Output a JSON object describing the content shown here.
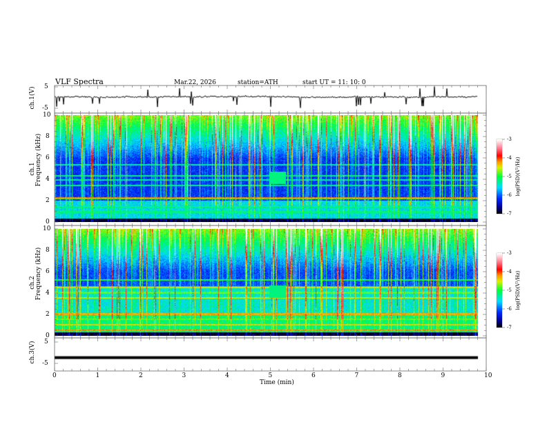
{
  "header": {
    "title": "VLF  Spectra",
    "date": "Mar.22, 2026",
    "station": "station=ATH",
    "start_ut": "start  UT  =    11: 10: 0"
  },
  "chart_data": [
    {
      "type": "line",
      "panel": "ch1-waveform",
      "ylabel": "ch.1(V)",
      "ylim": [
        -5,
        5
      ],
      "yticks": [
        "5",
        "-5"
      ],
      "xlim": [
        0,
        10
      ],
      "baseline_value": 0.3
    },
    {
      "type": "heatmap",
      "panel": "ch1-spectrogram",
      "ylabel_line1": "ch.1",
      "ylabel_line2": "Frequency  (kHz)",
      "ylim": [
        0,
        10
      ],
      "yticks": [
        "0",
        "2",
        "4",
        "6",
        "8",
        "10"
      ],
      "xlim": [
        0,
        10
      ],
      "colorbar": {
        "label": "log(PSD)(V²/Hz)",
        "range": [
          -7,
          -3
        ],
        "ticks": [
          "-3",
          "-4",
          "-5",
          "-6",
          "-7"
        ]
      }
    },
    {
      "type": "heatmap",
      "panel": "ch2-spectrogram",
      "ylabel_line1": "ch.2",
      "ylabel_line2": "Frequency  (kHz)",
      "ylim": [
        0,
        10
      ],
      "yticks": [
        "0",
        "2",
        "4",
        "6",
        "8",
        "10"
      ],
      "xlim": [
        0,
        10
      ],
      "colorbar": {
        "label": "log(PSD)(V²/Hz)",
        "range": [
          -7,
          -3
        ],
        "ticks": [
          "-3",
          "-4",
          "-5",
          "-6",
          "-7"
        ]
      }
    },
    {
      "type": "line",
      "panel": "ch3-waveform",
      "ylabel": "ch.3(V)",
      "ylim": [
        -5,
        5
      ],
      "yticks": [
        "5",
        "-5"
      ],
      "xlim": [
        0,
        10
      ],
      "baseline_value": -2.3
    }
  ],
  "xaxis": {
    "label": "Time  (min)",
    "ticks": [
      "0",
      "1",
      "2",
      "3",
      "4",
      "5",
      "6",
      "7",
      "8",
      "9",
      "10"
    ]
  }
}
